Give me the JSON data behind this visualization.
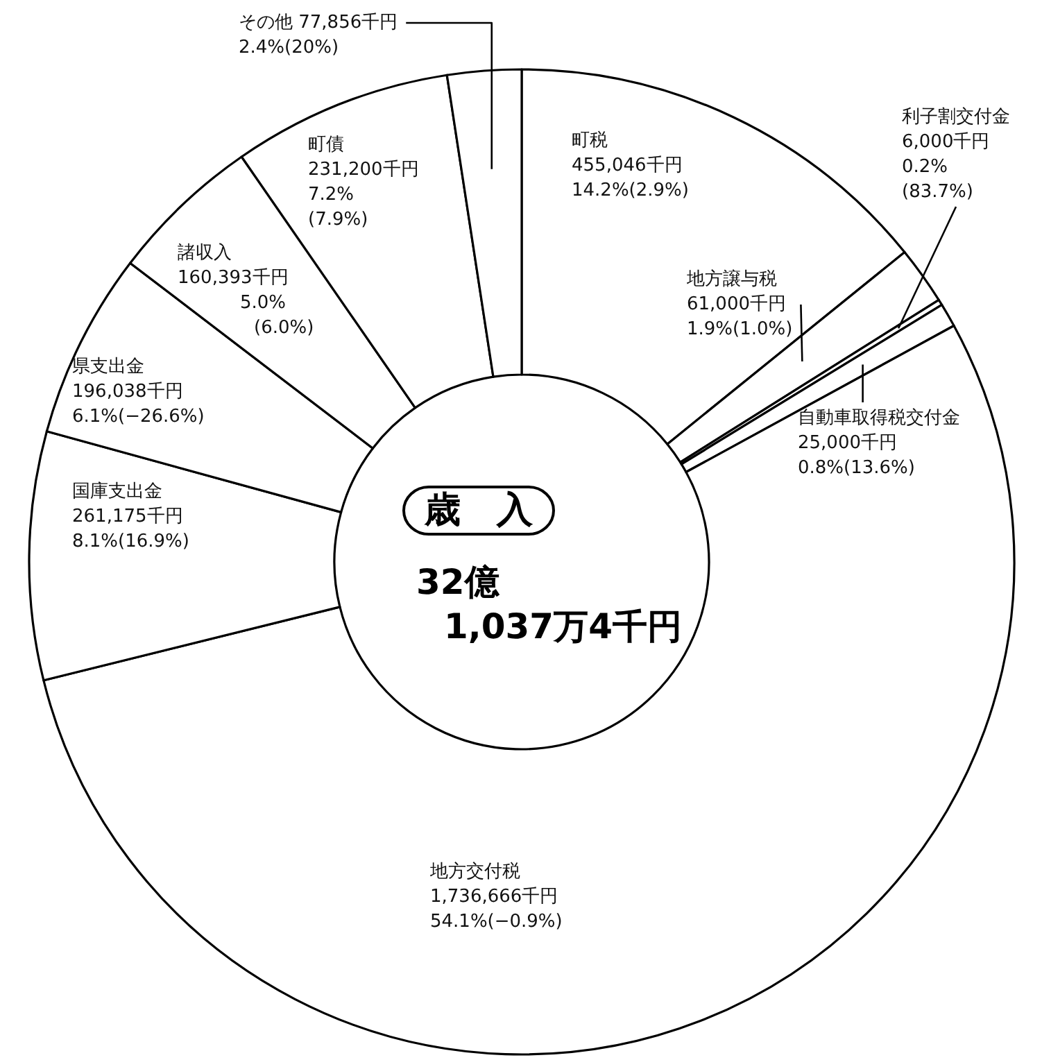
{
  "chart_data": {
    "type": "donut",
    "title": "歳　入",
    "annotations": [
      "32億\n1,037万4千円"
    ],
    "categories": [
      "町税",
      "地方譲与税",
      "利子割交付金",
      "自動車取得税交付金",
      "地方交付税",
      "国庫支出金",
      "県支出金",
      "諸収入",
      "町債",
      "その他"
    ],
    "values": [
      455046,
      61000,
      6000,
      25000,
      1736666,
      261175,
      196038,
      160393,
      231200,
      77856
    ],
    "colors": [
      "#ffffff",
      "#ffffff",
      "#ffffff",
      "#ffffff",
      "#ffffff",
      "#ffffff",
      "#ffffff",
      "#ffffff",
      "#ffffff",
      "#ffffff"
    ],
    "value_labels": [
      "455,046千円\n14.2%(2.9%)",
      "61,000千円\n1.9%(1.0%)",
      "6,000千円\n0.2%\n(83.7%)",
      "25,000千円\n0.8%(13.6%)",
      "1,736,666千円\n54.1%(−0.9%)",
      "261,175千円\n8.1%(16.9%)",
      "196,038千円\n6.1%(−26.6%)",
      "160,393千円\n5.0%\n(6.0%)",
      "231,200千円\n7.2%\n(7.9%)",
      "77,856千円\n2.4%(20%)"
    ]
  }
}
